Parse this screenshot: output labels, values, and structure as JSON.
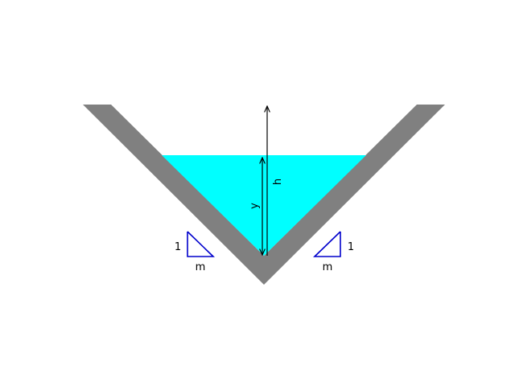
{
  "labels": {
    "depth": "y",
    "height": "h",
    "slope_rise_left": "1",
    "slope_run_left": "m",
    "slope_rise_right": "1",
    "slope_run_right": "m"
  },
  "colors": {
    "channel_wall": "#808080",
    "water": "#00ffff",
    "slope_triangle": "#0000cc",
    "dimension_line": "#000000",
    "background": "#ffffff"
  }
}
